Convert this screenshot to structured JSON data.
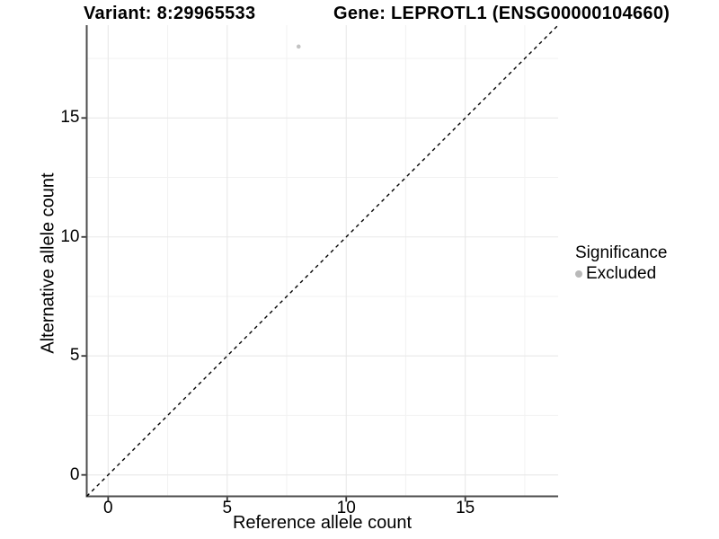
{
  "header": {
    "variant_title": "Variant: 8:29965533",
    "gene_title": "Gene: LEPROTL1 (ENSG00000104660)"
  },
  "colors": {
    "background": "#ffffff",
    "axis_line": "#4d4d4d",
    "tick_mark": "#333333",
    "grid_major": "#e8e8e8",
    "grid_minor": "#f2f2f2",
    "text": "#000000",
    "point": "#c3c3c3",
    "legend_key": "#b9b9b9",
    "reference_line": "#000000"
  },
  "chart_data": {
    "type": "scatter",
    "title": "Variant: 8:29965533   Gene: LEPROTL1 (ENSG00000104660)",
    "xlabel": "Reference allele count",
    "ylabel": "Alternative allele count",
    "xlim": [
      -0.9,
      18.9
    ],
    "ylim": [
      -0.9,
      18.9
    ],
    "x_ticks": [
      0,
      5,
      10,
      15
    ],
    "y_ticks": [
      0,
      5,
      10,
      15
    ],
    "x_minor_ticks": [
      2.5,
      7.5,
      12.5,
      17.5
    ],
    "y_minor_ticks": [
      2.5,
      7.5,
      12.5,
      17.5
    ],
    "grid": "major and minor gridlines, light gray on white",
    "series": [
      {
        "name": "Excluded",
        "color": "#c3c3c3",
        "points": [
          {
            "x": 8,
            "y": 18
          }
        ]
      }
    ],
    "reference_line": {
      "kind": "identity y = x",
      "style": "dashed",
      "color": "#000000"
    },
    "legend": {
      "title": "Significance",
      "position": "right",
      "entries": [
        {
          "label": "Excluded",
          "color": "#b9b9b9"
        }
      ]
    }
  }
}
